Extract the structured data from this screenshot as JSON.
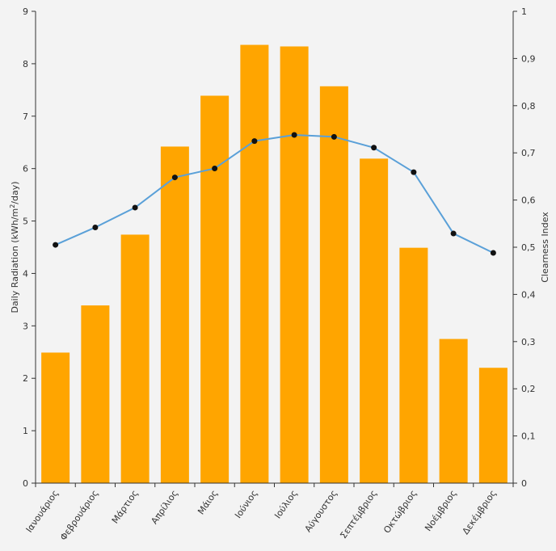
{
  "chart_data": {
    "type": "bar",
    "categories": [
      "Ιανουάριος",
      "Φεβρουάριος",
      "Μάρτιος",
      "Απρίλιος",
      "Μάιος",
      "Ιούνιος",
      "Ιούλιος",
      "Αύγουστος",
      "Σεπτέμβριος",
      "Οκτώβριος",
      "Νοέμβριος",
      "Δεκέμβριος"
    ],
    "series": [
      {
        "name": "Daily Radiation",
        "type": "bar",
        "axis": "left",
        "color": "#ffa500",
        "values": [
          2.49,
          3.39,
          4.74,
          6.42,
          7.39,
          8.36,
          8.33,
          7.57,
          6.19,
          4.49,
          2.75,
          2.2
        ]
      },
      {
        "name": "Clearness Index",
        "type": "line",
        "axis": "right",
        "color": "#5aa0d8",
        "values": [
          0.505,
          0.542,
          0.584,
          0.648,
          0.667,
          0.725,
          0.738,
          0.734,
          0.711,
          0.659,
          0.529,
          0.488
        ]
      }
    ],
    "yleft": {
      "label_main": "Daily Radiation (kWh/m",
      "label_sup": "2",
      "label_tail": "/day)",
      "ylim": [
        0,
        9
      ],
      "ticks": [
        "0",
        "1",
        "2",
        "3",
        "4",
        "5",
        "6",
        "7",
        "8",
        "9"
      ]
    },
    "yright": {
      "label": "Clearness Index",
      "ylim": [
        0,
        1
      ],
      "ticks": [
        "0",
        "0,1",
        "0,2",
        "0,3",
        "0,4",
        "0,5",
        "0,6",
        "0,7",
        "0,8",
        "0,9",
        "1"
      ]
    },
    "grid": false,
    "legend": "none"
  }
}
